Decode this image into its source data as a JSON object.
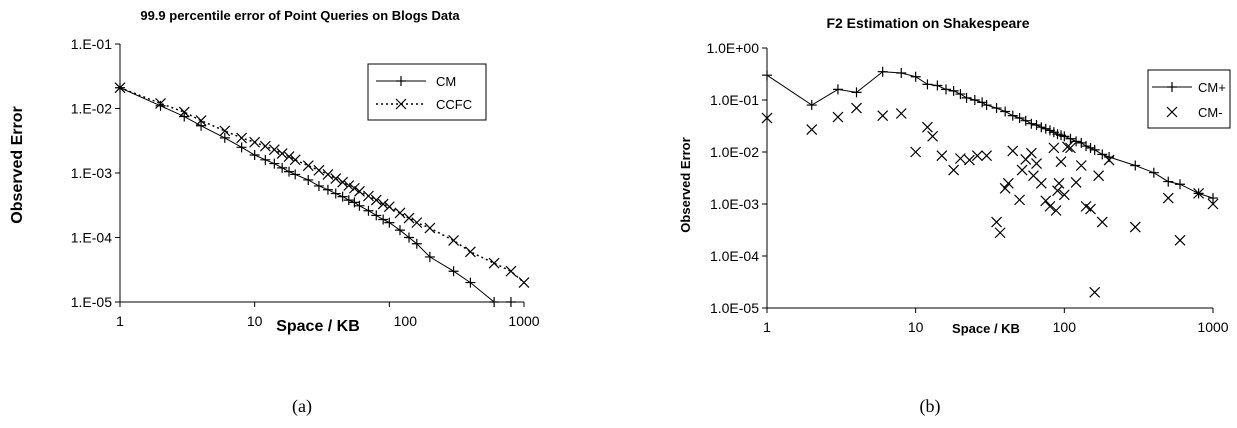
{
  "chart_data": [
    {
      "type": "line",
      "title": "99.9 percentile error of Point Queries on Blogs Data",
      "xlabel": "Space / KB",
      "ylabel": "Observed Error",
      "caption": "(a)",
      "x_scale": "log",
      "y_scale": "log",
      "xlim": [
        1,
        1000
      ],
      "ylim": [
        1e-05,
        0.1
      ],
      "x_ticks": [
        "1",
        "10",
        "100",
        "1000"
      ],
      "y_ticks": [
        "1.E-05",
        "1.E-04",
        "1.E-03",
        "1.E-02",
        "1.E-01"
      ],
      "grid": false,
      "legend_position": "top-right",
      "series": [
        {
          "name": "CM",
          "style": "solid line with + markers",
          "x": [
            1,
            2,
            3,
            4,
            6,
            8,
            10,
            12,
            14,
            16,
            18,
            20,
            25,
            30,
            35,
            40,
            45,
            50,
            55,
            60,
            70,
            80,
            90,
            100,
            120,
            140,
            160,
            200,
            300,
            400,
            600,
            800
          ],
          "y": [
            0.021,
            0.011,
            0.0075,
            0.0054,
            0.0035,
            0.0025,
            0.0019,
            0.0016,
            0.0014,
            0.0012,
            0.00105,
            0.00095,
            0.00078,
            0.00063,
            0.00055,
            0.00048,
            0.00043,
            0.00038,
            0.00035,
            0.00031,
            0.00026,
            0.00022,
            0.00019,
            0.00017,
            0.00013,
            0.0001,
            8e-05,
            5e-05,
            3e-05,
            2e-05,
            1e-05,
            1e-05
          ]
        },
        {
          "name": "CCFC",
          "style": "dotted line with x markers",
          "x": [
            1,
            2,
            3,
            4,
            6,
            8,
            10,
            12,
            14,
            16,
            18,
            20,
            25,
            30,
            35,
            40,
            45,
            50,
            55,
            60,
            70,
            80,
            90,
            100,
            120,
            140,
            160,
            200,
            300,
            400,
            600,
            800,
            1000
          ],
          "y": [
            0.021,
            0.012,
            0.0088,
            0.0065,
            0.0045,
            0.0035,
            0.003,
            0.0026,
            0.0023,
            0.002,
            0.0018,
            0.0016,
            0.0013,
            0.0011,
            0.00095,
            0.00082,
            0.00072,
            0.00064,
            0.00058,
            0.00052,
            0.00044,
            0.00038,
            0.00033,
            0.0003,
            0.00024,
            0.0002,
            0.00017,
            0.00014,
            9e-05,
            6e-05,
            4e-05,
            3e-05,
            2e-05
          ]
        }
      ]
    },
    {
      "type": "scatter",
      "title": "F2 Estimation on Shakespeare",
      "xlabel": "Space / KB",
      "ylabel": "Observed Error",
      "caption": "(b)",
      "x_scale": "log",
      "y_scale": "log",
      "xlim": [
        1,
        1000
      ],
      "ylim": [
        1e-05,
        1
      ],
      "x_ticks": [
        "1",
        "10",
        "100",
        "1000"
      ],
      "y_ticks": [
        "1.0E-05",
        "1.0E-04",
        "1.0E-03",
        "1.0E-02",
        "1.0E-01",
        "1.0E+00"
      ],
      "grid": false,
      "legend_position": "top-right",
      "series": [
        {
          "name": "CM+",
          "style": "solid line with + markers",
          "x": [
            1,
            2,
            3,
            4,
            6,
            8,
            10,
            12,
            14,
            16,
            18,
            20,
            22,
            25,
            28,
            30,
            35,
            40,
            45,
            50,
            55,
            60,
            65,
            70,
            75,
            80,
            85,
            90,
            95,
            100,
            110,
            120,
            130,
            140,
            150,
            160,
            180,
            200,
            300,
            400,
            500,
            600,
            800,
            1000
          ],
          "y": [
            0.3,
            0.08,
            0.16,
            0.14,
            0.35,
            0.33,
            0.28,
            0.2,
            0.19,
            0.16,
            0.15,
            0.13,
            0.11,
            0.1,
            0.09,
            0.08,
            0.07,
            0.06,
            0.05,
            0.045,
            0.04,
            0.035,
            0.033,
            0.03,
            0.028,
            0.026,
            0.024,
            0.022,
            0.021,
            0.02,
            0.018,
            0.016,
            0.015,
            0.013,
            0.012,
            0.011,
            0.009,
            0.008,
            0.0055,
            0.004,
            0.0027,
            0.0024,
            0.0016,
            0.0013
          ]
        },
        {
          "name": "CM-",
          "style": "x markers only",
          "x": [
            1,
            2,
            3,
            4,
            6,
            8,
            10,
            12,
            13,
            15,
            18,
            20,
            23,
            26,
            30,
            35,
            37,
            40,
            42,
            45,
            50,
            52,
            55,
            60,
            62,
            65,
            70,
            75,
            80,
            85,
            88,
            90,
            92,
            95,
            100,
            105,
            110,
            120,
            130,
            140,
            150,
            160,
            170,
            180,
            200,
            300,
            500,
            600,
            800,
            1000
          ],
          "y": [
            0.045,
            0.027,
            0.047,
            0.07,
            0.05,
            0.055,
            0.01,
            0.03,
            0.02,
            0.0085,
            0.0045,
            0.0075,
            0.007,
            0.0085,
            0.0085,
            0.00045,
            0.00028,
            0.002,
            0.0025,
            0.0105,
            0.0012,
            0.0045,
            0.0072,
            0.0095,
            0.0035,
            0.006,
            0.0025,
            0.00115,
            0.0009,
            0.012,
            0.00075,
            0.0018,
            0.0025,
            0.0065,
            0.0015,
            0.0125,
            0.012,
            0.0026,
            0.0055,
            0.0009,
            0.0008,
            2e-05,
            0.0035,
            0.00045,
            0.007,
            0.00036,
            0.0013,
            0.0002,
            0.0016,
            0.001
          ]
        }
      ]
    }
  ]
}
